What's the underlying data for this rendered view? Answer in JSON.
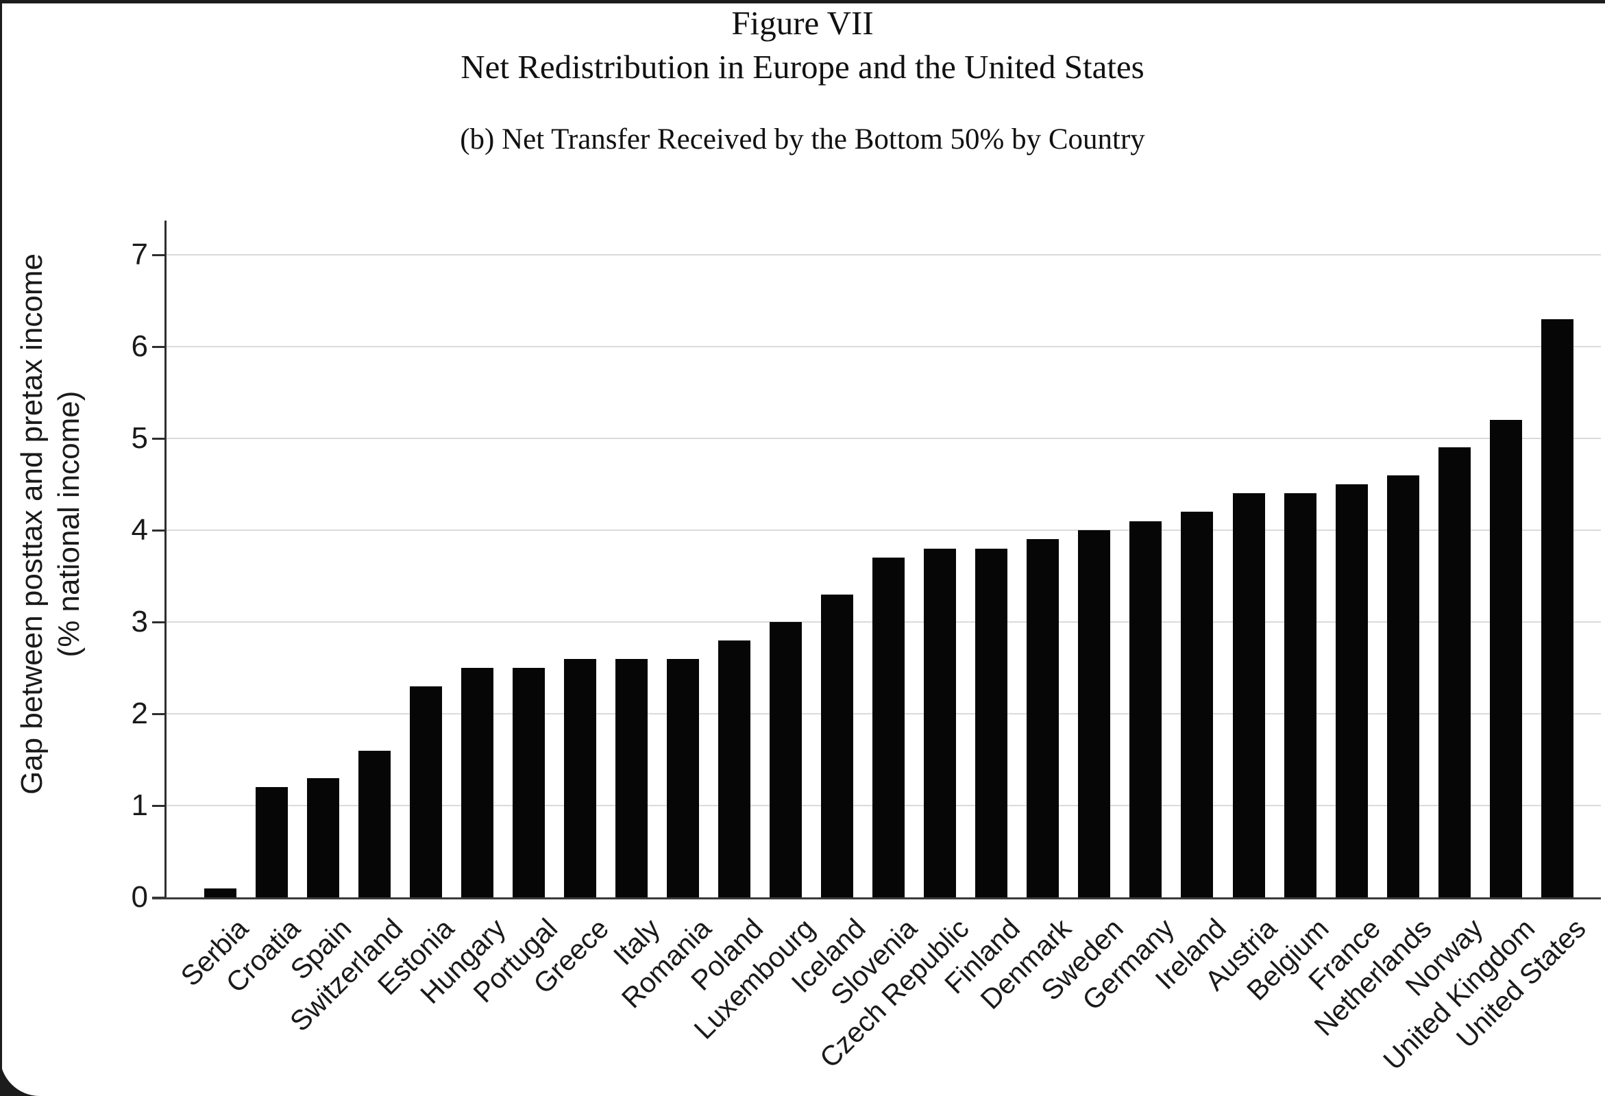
{
  "figure": {
    "title_line1": "Figure VII",
    "title_line2": "Net Redistribution in Europe and the United States",
    "panel_caption": "(b) Net Transfer Received by the Bottom 50% by Country"
  },
  "chart_data": {
    "type": "bar",
    "title": "Figure VII — Net Redistribution in Europe and the United States",
    "subtitle": "(b) Net Transfer Received by the Bottom 50% by Country",
    "categories": [
      "Serbia",
      "Croatia",
      "Spain",
      "Switzerland",
      "Estonia",
      "Hungary",
      "Portugal",
      "Greece",
      "Italy",
      "Romania",
      "Poland",
      "Luxembourg",
      "Iceland",
      "Slovenia",
      "Czech Republic",
      "Finland",
      "Denmark",
      "Sweden",
      "Germany",
      "Ireland",
      "Austria",
      "Belgium",
      "France",
      "Netherlands",
      "Norway",
      "United Kingdom",
      "United States"
    ],
    "values": [
      0.1,
      1.2,
      1.3,
      1.6,
      2.3,
      2.5,
      2.5,
      2.6,
      2.6,
      2.6,
      2.8,
      3.0,
      3.3,
      3.7,
      3.8,
      3.8,
      3.9,
      4.0,
      4.1,
      4.2,
      4.4,
      4.4,
      4.5,
      4.6,
      4.9,
      5.2,
      6.3
    ],
    "xlabel": "",
    "ylabel_line1": "Gap between posttax and pretax income",
    "ylabel_line2": "(% national income)",
    "y_ticks": [
      0,
      1,
      2,
      3,
      4,
      5,
      6,
      7
    ],
    "ylim": [
      0,
      7.4
    ],
    "grid": true,
    "legend_position": "none",
    "bar_color": "#060606",
    "gridline_color": "#dadada",
    "axis_color": "#2e2e2e"
  }
}
